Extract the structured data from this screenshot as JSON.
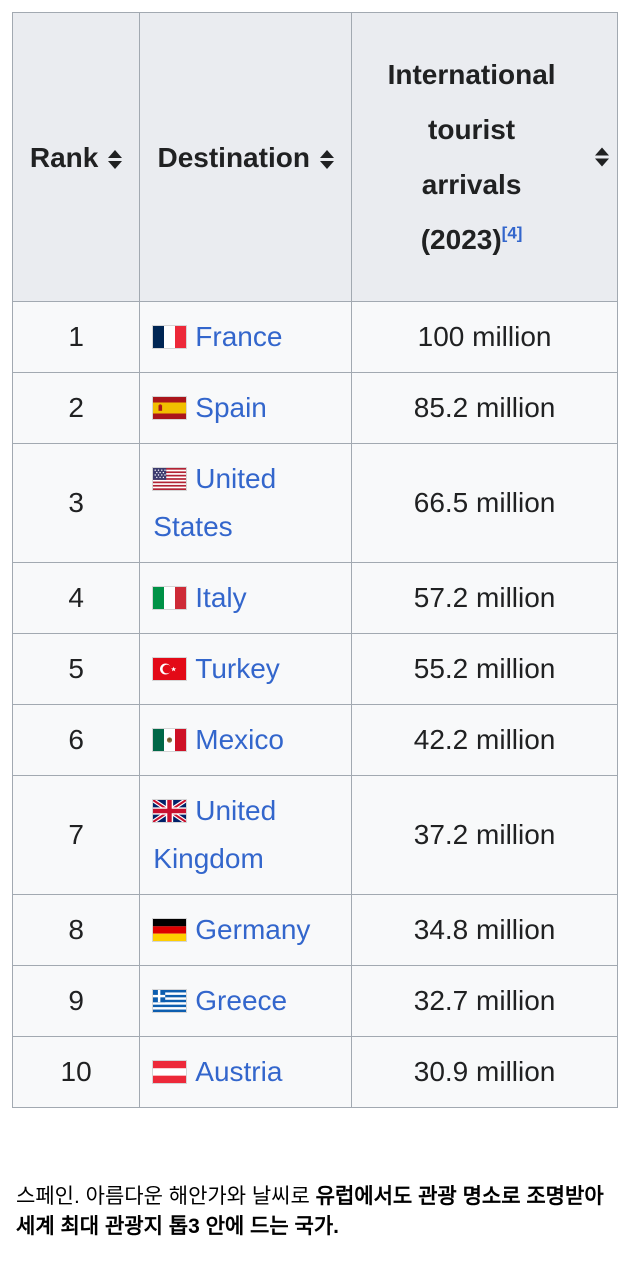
{
  "table": {
    "headers": [
      {
        "label": "Rank"
      },
      {
        "label": "Destination"
      },
      {
        "label": "International tourist arrivals (2023)",
        "ref": "[4]"
      }
    ],
    "rows": [
      {
        "rank": "1",
        "flag": "france",
        "destination": "France",
        "arrivals": "100 million"
      },
      {
        "rank": "2",
        "flag": "spain",
        "destination": "Spain",
        "arrivals": "85.2 million"
      },
      {
        "rank": "3",
        "flag": "united-states",
        "destination": "United States",
        "arrivals": "66.5 million"
      },
      {
        "rank": "4",
        "flag": "italy",
        "destination": "Italy",
        "arrivals": "57.2 million"
      },
      {
        "rank": "5",
        "flag": "turkey",
        "destination": "Turkey",
        "arrivals": "55.2 million"
      },
      {
        "rank": "6",
        "flag": "mexico",
        "destination": "Mexico",
        "arrivals": "42.2 million"
      },
      {
        "rank": "7",
        "flag": "united-kingdom",
        "destination": "United Kingdom",
        "arrivals": "37.2 million"
      },
      {
        "rank": "8",
        "flag": "germany",
        "destination": "Germany",
        "arrivals": "34.8 million"
      },
      {
        "rank": "9",
        "flag": "greece",
        "destination": "Greece",
        "arrivals": "32.7 million"
      },
      {
        "rank": "10",
        "flag": "austria",
        "destination": "Austria",
        "arrivals": "30.9 million"
      }
    ]
  },
  "caption": {
    "prefix": "스페인. 아름다운 해안가와 날씨로 ",
    "bold": "유럽에서도 관광 명소로 조명받아 세계 최대 관광지 톱3 안에 드는 국가."
  },
  "colors": {
    "link": "#3366cc",
    "header_bg": "#eaecf0",
    "row_bg": "#f8f9fa",
    "border": "#a2a9b1",
    "text": "#202122"
  },
  "chart_data": {
    "type": "table",
    "title": "International tourist arrivals (2023)",
    "columns": [
      "Rank",
      "Destination",
      "International tourist arrivals (2023)"
    ],
    "rows": [
      [
        1,
        "France",
        "100 million"
      ],
      [
        2,
        "Spain",
        "85.2 million"
      ],
      [
        3,
        "United States",
        "66.5 million"
      ],
      [
        4,
        "Italy",
        "57.2 million"
      ],
      [
        5,
        "Turkey",
        "55.2 million"
      ],
      [
        6,
        "Mexico",
        "42.2 million"
      ],
      [
        7,
        "United Kingdom",
        "37.2 million"
      ],
      [
        8,
        "Germany",
        "34.8 million"
      ],
      [
        9,
        "Greece",
        "32.7 million"
      ],
      [
        10,
        "Austria",
        "30.9 million"
      ]
    ],
    "values_million": [
      100,
      85.2,
      66.5,
      57.2,
      55.2,
      42.2,
      37.2,
      34.8,
      32.7,
      30.9
    ],
    "footnote_ref": "[4]",
    "sortable_columns": true
  }
}
